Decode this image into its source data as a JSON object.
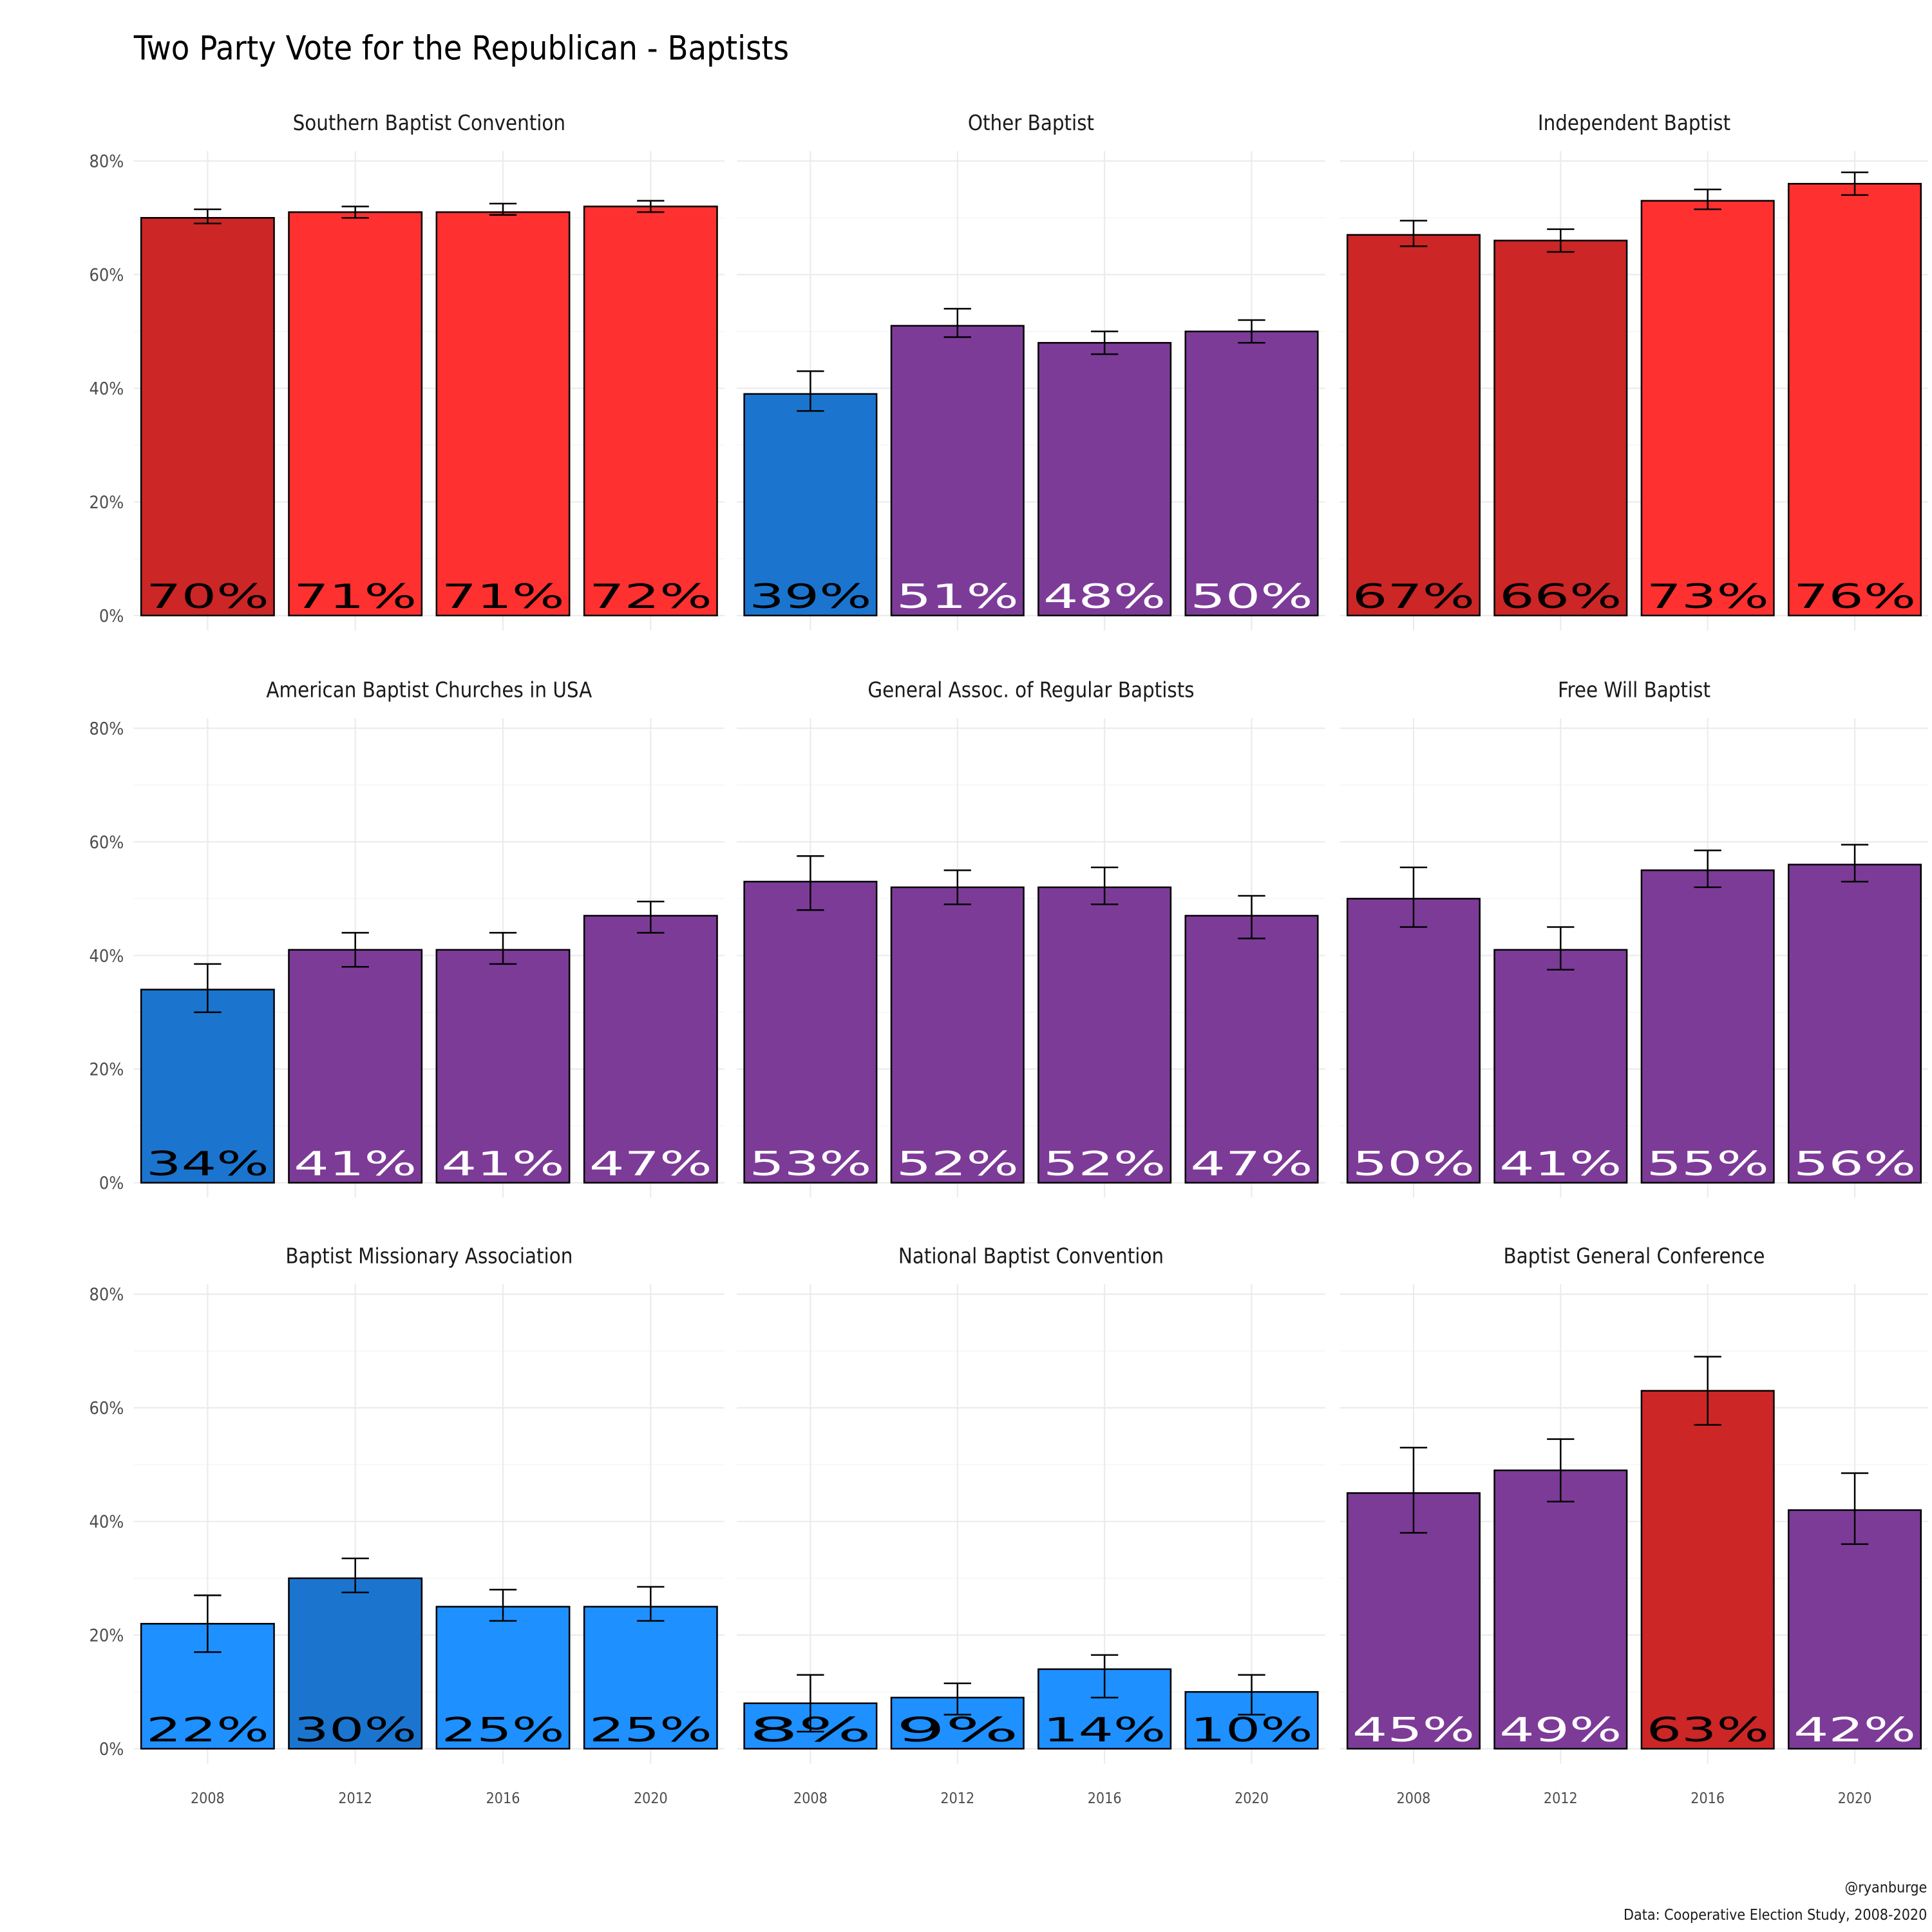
{
  "chart_data": {
    "type": "bar",
    "title": "Two Party Vote for the Republican - Baptists",
    "caption": [
      "@ryanburge",
      "Data: Cooperative Election Study, 2008-2020"
    ],
    "categories": [
      "2008",
      "2012",
      "2016",
      "2020"
    ],
    "ylim": [
      0,
      80
    ],
    "yticks": [
      "0%",
      "20%",
      "40%",
      "60%",
      "80%"
    ],
    "grid": true,
    "colors": {
      "dark_red": "#CC2626",
      "red": "#FF3030",
      "purple": "#7D3B98",
      "dark_blue": "#1B75CF",
      "blue": "#1E90FF"
    },
    "panels": [
      {
        "name": "Southern Baptist Convention",
        "values": [
          70,
          71,
          71,
          72
        ],
        "labels": [
          "70%",
          "71%",
          "71%",
          "72%"
        ],
        "ci": [
          [
            69,
            71.5
          ],
          [
            70,
            72
          ],
          [
            70.5,
            72.5
          ],
          [
            71,
            73
          ]
        ],
        "fills": [
          "dark_red",
          "red",
          "red",
          "red"
        ],
        "label_colors": [
          "#000000",
          "#000000",
          "#000000",
          "#000000"
        ]
      },
      {
        "name": "Other Baptist",
        "values": [
          39,
          51,
          48,
          50
        ],
        "labels": [
          "39%",
          "51%",
          "48%",
          "50%"
        ],
        "ci": [
          [
            36,
            43
          ],
          [
            49,
            54
          ],
          [
            46,
            50
          ],
          [
            48,
            52
          ]
        ],
        "fills": [
          "dark_blue",
          "purple",
          "purple",
          "purple"
        ],
        "label_colors": [
          "#000000",
          "#FFFFFF",
          "#FFFFFF",
          "#FFFFFF"
        ]
      },
      {
        "name": "Independent Baptist",
        "values": [
          67,
          66,
          73,
          76
        ],
        "labels": [
          "67%",
          "66%",
          "73%",
          "76%"
        ],
        "ci": [
          [
            65,
            69.5
          ],
          [
            64,
            68
          ],
          [
            71.5,
            75
          ],
          [
            74,
            78
          ]
        ],
        "fills": [
          "dark_red",
          "dark_red",
          "red",
          "red"
        ],
        "label_colors": [
          "#000000",
          "#000000",
          "#000000",
          "#000000"
        ]
      },
      {
        "name": "American Baptist Churches in USA",
        "values": [
          34,
          41,
          41,
          47
        ],
        "labels": [
          "34%",
          "41%",
          "41%",
          "47%"
        ],
        "ci": [
          [
            30,
            38.5
          ],
          [
            38,
            44
          ],
          [
            38.5,
            44
          ],
          [
            44,
            49.5
          ]
        ],
        "fills": [
          "dark_blue",
          "purple",
          "purple",
          "purple"
        ],
        "label_colors": [
          "#000000",
          "#FFFFFF",
          "#FFFFFF",
          "#FFFFFF"
        ]
      },
      {
        "name": "General Assoc. of Regular Baptists",
        "values": [
          53,
          52,
          52,
          47
        ],
        "labels": [
          "53%",
          "52%",
          "52%",
          "47%"
        ],
        "ci": [
          [
            48,
            57.5
          ],
          [
            49,
            55
          ],
          [
            49,
            55.5
          ],
          [
            43,
            50.5
          ]
        ],
        "fills": [
          "purple",
          "purple",
          "purple",
          "purple"
        ],
        "label_colors": [
          "#FFFFFF",
          "#FFFFFF",
          "#FFFFFF",
          "#FFFFFF"
        ]
      },
      {
        "name": "Free Will Baptist",
        "values": [
          50,
          41,
          55,
          56
        ],
        "labels": [
          "50%",
          "41%",
          "55%",
          "56%"
        ],
        "ci": [
          [
            45,
            55.5
          ],
          [
            37.5,
            45
          ],
          [
            52,
            58.5
          ],
          [
            53,
            59.5
          ]
        ],
        "fills": [
          "purple",
          "purple",
          "purple",
          "purple"
        ],
        "label_colors": [
          "#FFFFFF",
          "#FFFFFF",
          "#FFFFFF",
          "#FFFFFF"
        ]
      },
      {
        "name": "Baptist Missionary Association",
        "values": [
          22,
          30,
          25,
          25
        ],
        "labels": [
          "22%",
          "30%",
          "25%",
          "25%"
        ],
        "ci": [
          [
            17,
            27
          ],
          [
            27.5,
            33.5
          ],
          [
            22.5,
            28
          ],
          [
            22.5,
            28.5
          ]
        ],
        "fills": [
          "blue",
          "dark_blue",
          "blue",
          "blue"
        ],
        "label_colors": [
          "#000000",
          "#000000",
          "#000000",
          "#000000"
        ]
      },
      {
        "name": "National Baptist Convention",
        "values": [
          8,
          9,
          14,
          10
        ],
        "labels": [
          "8%",
          "9%",
          "14%",
          "10%"
        ],
        "ci": [
          [
            3,
            13
          ],
          [
            6,
            11.5
          ],
          [
            9,
            16.5
          ],
          [
            6,
            13
          ]
        ],
        "fills": [
          "blue",
          "blue",
          "blue",
          "blue"
        ],
        "label_colors": [
          "#000000",
          "#000000",
          "#000000",
          "#000000"
        ]
      },
      {
        "name": "Baptist General Conference",
        "values": [
          45,
          49,
          63,
          42
        ],
        "labels": [
          "45%",
          "49%",
          "63%",
          "42%"
        ],
        "ci": [
          [
            38,
            53
          ],
          [
            43.5,
            54.5
          ],
          [
            57,
            69
          ],
          [
            36,
            48.5
          ]
        ],
        "fills": [
          "purple",
          "purple",
          "dark_red",
          "purple"
        ],
        "label_colors": [
          "#FFFFFF",
          "#FFFFFF",
          "#000000",
          "#FFFFFF"
        ]
      }
    ]
  }
}
